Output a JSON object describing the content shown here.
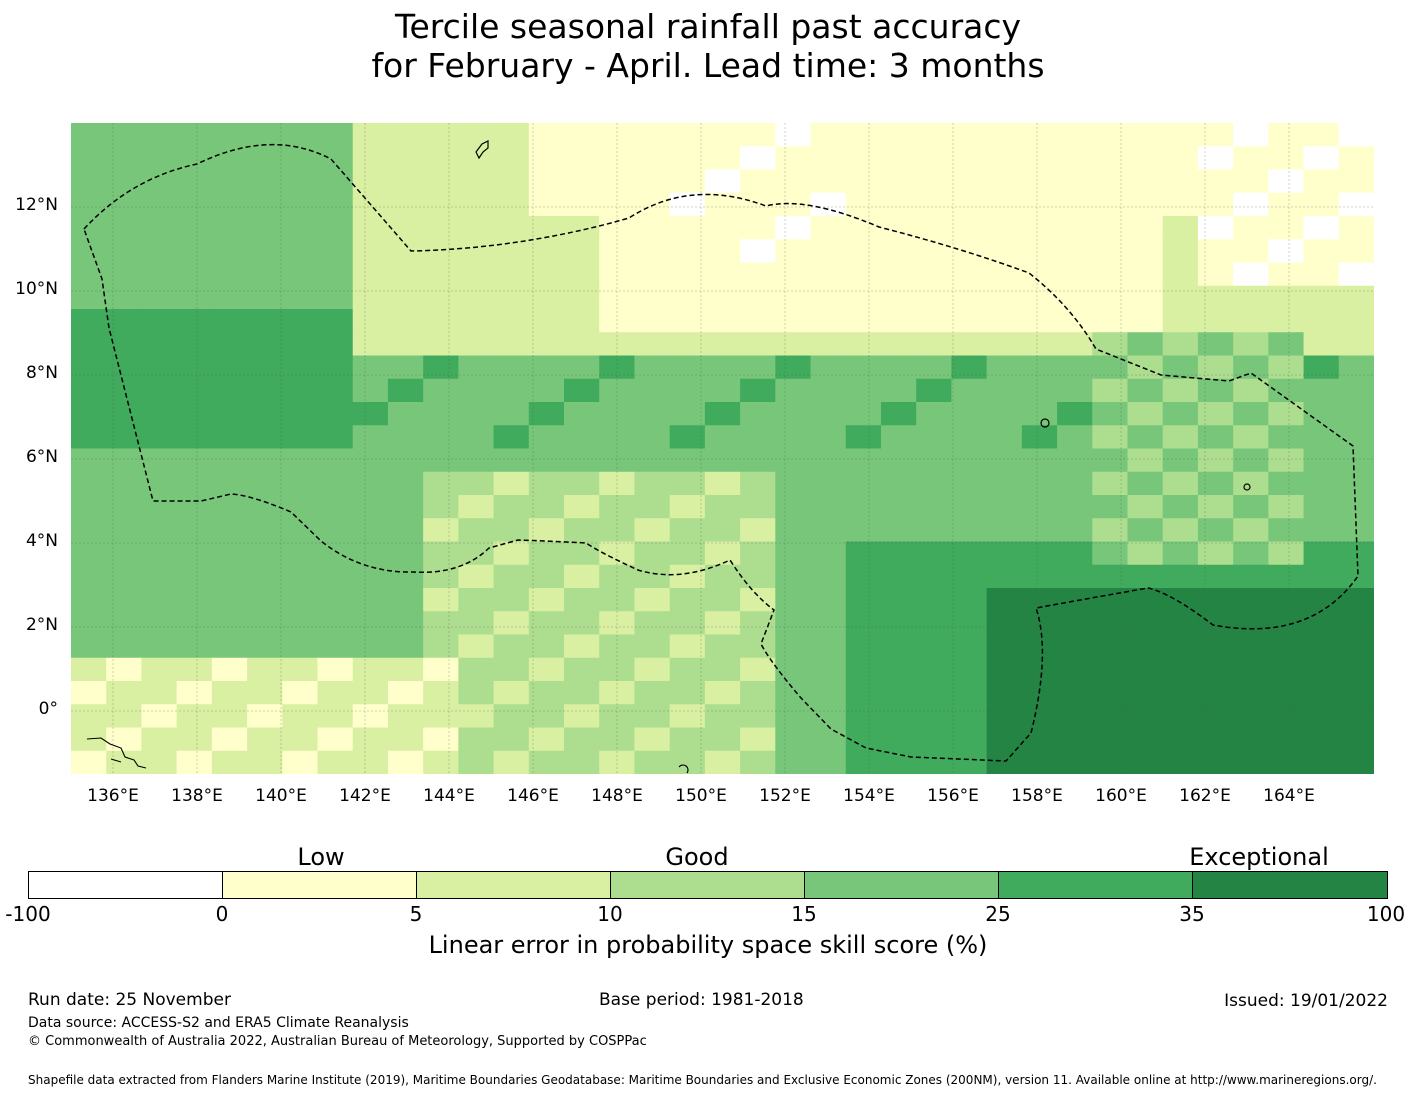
{
  "title": {
    "line1": "Tercile seasonal rainfall past accuracy",
    "line2": "for February - April. Lead time: 3 months"
  },
  "map": {
    "lat_labels": [
      "12°N",
      "10°N",
      "8°N",
      "6°N",
      "4°N",
      "2°N",
      "0°"
    ],
    "lon_labels": [
      "136°E",
      "138°E",
      "140°E",
      "142°E",
      "144°E",
      "146°E",
      "148°E",
      "150°E",
      "152°E",
      "154°E",
      "156°E",
      "158°E",
      "160°E",
      "162°E",
      "164°E"
    ],
    "lat_range": [
      -1.5,
      14.0
    ],
    "lon_range": [
      135.0,
      166.0
    ],
    "boundary": "dashed EEZ outline"
  },
  "legend": {
    "categories": [
      "Low",
      "Good",
      "Exceptional"
    ],
    "ticks": [
      "-100",
      "0",
      "5",
      "10",
      "15",
      "25",
      "35",
      "100"
    ],
    "colors": [
      "#ffffff",
      "#ffffcc",
      "#d9f0a3",
      "#addd8e",
      "#78c679",
      "#41ab5d",
      "#238443"
    ],
    "units": "Linear error in probability space skill score (%)"
  },
  "footer": {
    "run_date": "Run date: 25 November",
    "base_period": "Base period: 1981-2018",
    "issued": "Issued: 19/01/2022",
    "data_source": "Data source: ACCESS-S2 and ERA5 Climate Reanalysis",
    "copyright": "© Commonwealth of Australia 2022, Australian Bureau of Meteorology, Supported by COSPPac",
    "shapefile": "Shapefile data extracted from Flanders Marine Institute (2019), Maritime Boundaries Geodatabase: Maritime Boundaries and Exclusive Economic Zones (200NM), version 11. Available online at http://www.marineregions.org/."
  }
}
